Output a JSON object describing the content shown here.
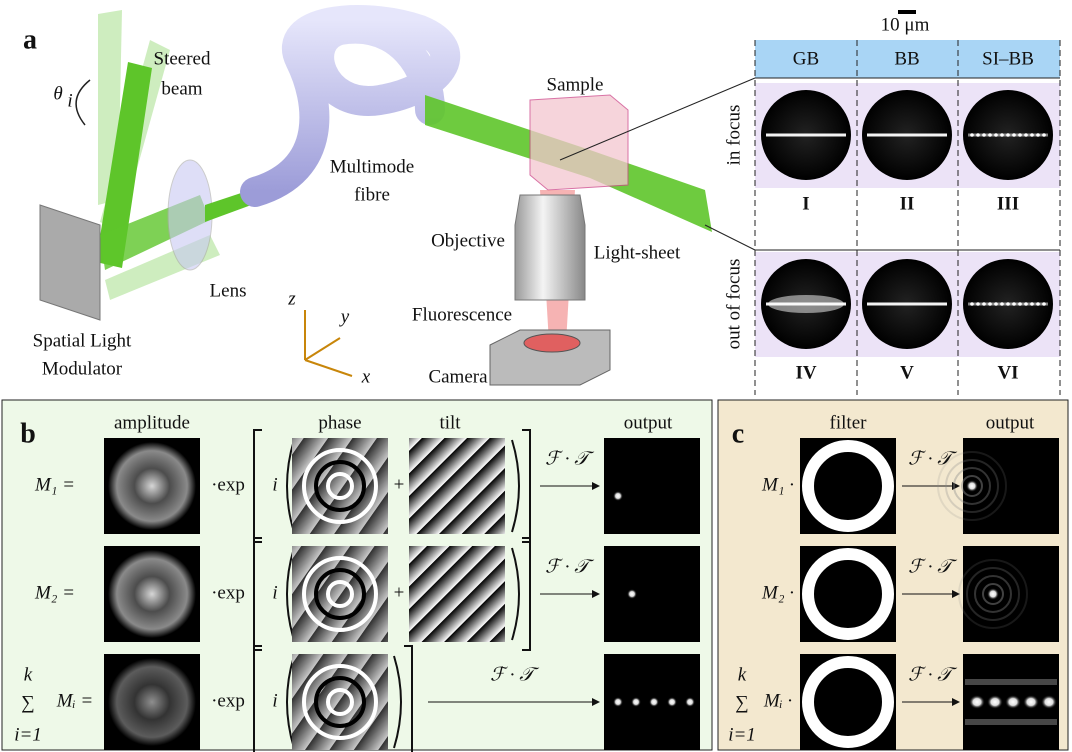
{
  "panel_a": {
    "label": "a",
    "steered_beam": [
      "Steered",
      "beam"
    ],
    "angle": "θ",
    "angle_sub": "i",
    "slm": [
      "Spatial Light",
      "Modulator"
    ],
    "lens": "Lens",
    "fibre": [
      "Multimode",
      "fibre"
    ],
    "sample": "Sample",
    "objective": "Objective",
    "light_sheet": "Light-sheet",
    "fluorescence": "Fluorescence",
    "camera": "Camera",
    "axes": {
      "z": "z",
      "y": "y",
      "x": "x"
    },
    "scale_bar": "10 μm",
    "columns": [
      "GB",
      "BB",
      "SI–BB"
    ],
    "rows": [
      {
        "label": "in focus",
        "numerals": [
          "I",
          "II",
          "III"
        ]
      },
      {
        "label": "out of focus",
        "numerals": [
          "IV",
          "V",
          "VI"
        ]
      }
    ]
  },
  "panel_b": {
    "label": "b",
    "headers": [
      "amplitude",
      "phase",
      "tilt",
      "output"
    ],
    "exp": "·exp",
    "i": "i",
    "plus": "+",
    "transform": "ℱ · 𝒯",
    "rows": [
      {
        "lhs": "M₁ ="
      },
      {
        "lhs": "M₂ ="
      },
      {
        "lhs": "Mᵢ =",
        "sum": "∑",
        "sum_top": "k",
        "sum_bottom": "i=1"
      }
    ]
  },
  "panel_c": {
    "label": "c",
    "headers": [
      "filter",
      "output"
    ],
    "transform": "ℱ · 𝒯",
    "rows": [
      {
        "lhs": "M₁ ·"
      },
      {
        "lhs": "M₂ ·"
      },
      {
        "lhs": "Mᵢ ·",
        "sum": "∑",
        "sum_top": "k",
        "sum_bottom": "i=1"
      }
    ]
  }
}
